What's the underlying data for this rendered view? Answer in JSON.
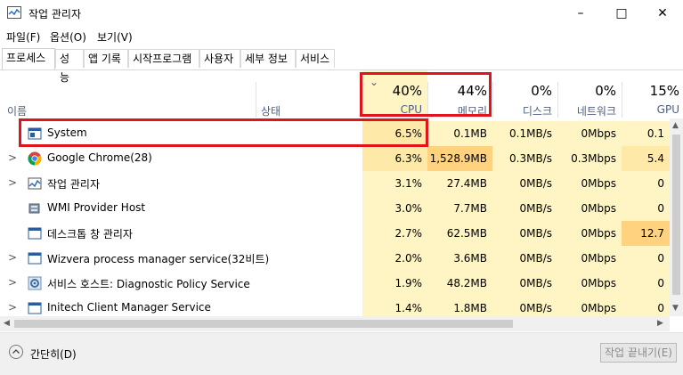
{
  "window": {
    "title": "작업 관리자",
    "minimize": "–",
    "maximize": "□",
    "close": "✕"
  },
  "menu": [
    "파일(F)",
    "옵션(O)",
    "보기(V)"
  ],
  "tabs": [
    "프로세스",
    "성능",
    "앱 기록",
    "시작프로그램",
    "사용자",
    "세부 정보",
    "서비스"
  ],
  "active_tab": "프로세스",
  "columns": {
    "name": "이름",
    "status": "상태",
    "sort_indicator": "⌄",
    "cpu": {
      "pct": "40%",
      "label": "CPU"
    },
    "memory": {
      "pct": "44%",
      "label": "메모리"
    },
    "disk": {
      "pct": "0%",
      "label": "디스크"
    },
    "network": {
      "pct": "0%",
      "label": "네트워크"
    },
    "gpu": {
      "pct": "15%",
      "label": "GPU"
    }
  },
  "processes": [
    {
      "name": "System",
      "expandable": false,
      "icon": "system-window-icon",
      "cpu": "6.5%",
      "memory": "0.1MB",
      "disk": "0.1MB/s",
      "network": "0Mbps",
      "gpu": "0.1"
    },
    {
      "name": "Google Chrome(28)",
      "expandable": true,
      "icon": "chrome-icon",
      "cpu": "6.3%",
      "memory": "1,528.9MB",
      "disk": "0.3MB/s",
      "network": "0.3Mbps",
      "gpu": "5.4"
    },
    {
      "name": "작업 관리자",
      "expandable": true,
      "icon": "task-manager-icon",
      "cpu": "3.1%",
      "memory": "27.4MB",
      "disk": "0MB/s",
      "network": "0Mbps",
      "gpu": "0"
    },
    {
      "name": "WMI Provider Host",
      "expandable": false,
      "icon": "wmi-icon",
      "cpu": "3.0%",
      "memory": "7.7MB",
      "disk": "0MB/s",
      "network": "0Mbps",
      "gpu": "0"
    },
    {
      "name": "데스크톱 창 관리자",
      "expandable": false,
      "icon": "window-icon",
      "cpu": "2.7%",
      "memory": "62.5MB",
      "disk": "0MB/s",
      "network": "0Mbps",
      "gpu": "12.7"
    },
    {
      "name": "Wizvera process manager service(32비트)",
      "expandable": true,
      "icon": "window-icon",
      "cpu": "2.0%",
      "memory": "3.6MB",
      "disk": "0MB/s",
      "network": "0Mbps",
      "gpu": "0"
    },
    {
      "name": "서비스 호스트: Diagnostic Policy Service",
      "expandable": true,
      "icon": "gear-icon",
      "cpu": "1.9%",
      "memory": "48.2MB",
      "disk": "0MB/s",
      "network": "0Mbps",
      "gpu": "0"
    },
    {
      "name": "Initech Client Manager Service",
      "expandable": true,
      "icon": "window-icon",
      "cpu": "1.4%",
      "memory": "1.8MB",
      "disk": "0MB/s",
      "network": "0Mbps",
      "gpu": "0"
    }
  ],
  "footer": {
    "fewer_details": "간단히(D)",
    "end_task": "작업 끝내기(E)"
  },
  "colors": {
    "heat_light": "#fff4c4",
    "heat_medium": "#ffe9a8",
    "heat_strong": "#ffd27f",
    "cpu_header_bg": "#fff4c4",
    "highlight_box": "#e1141b"
  }
}
